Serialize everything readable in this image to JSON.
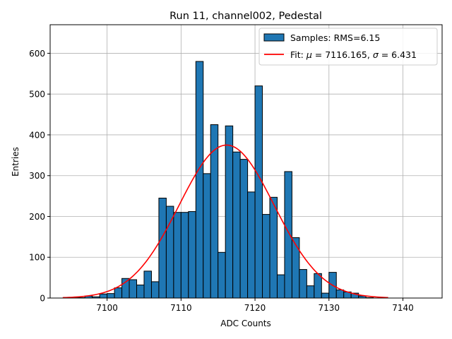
{
  "chart_data": {
    "type": "bar",
    "title": "Run 11, channel002, Pedestal",
    "xlabel": "ADC Counts",
    "ylabel": "Entries",
    "xlim": [
      7092.3,
      7145.3
    ],
    "ylim": [
      0,
      670
    ],
    "x_ticks": [
      7100,
      7110,
      7120,
      7130,
      7140
    ],
    "y_ticks": [
      0,
      100,
      200,
      300,
      400,
      500,
      600
    ],
    "grid": true,
    "legend_position": "top-right",
    "bin_width": 1,
    "bins": {
      "x_start": [
        7095,
        7096,
        7097,
        7098,
        7099,
        7100,
        7101,
        7102,
        7103,
        7104,
        7105,
        7106,
        7107,
        7108,
        7109,
        7110,
        7111,
        7112,
        7113,
        7114,
        7115,
        7116,
        7117,
        7118,
        7119,
        7120,
        7121,
        7122,
        7123,
        7124,
        7125,
        7126,
        7127,
        7128,
        7129,
        7130,
        7131,
        7132,
        7133,
        7134,
        7135
      ],
      "counts": [
        1,
        1,
        5,
        3,
        10,
        11,
        25,
        48,
        45,
        32,
        66,
        40,
        245,
        225,
        210,
        210,
        212,
        580,
        305,
        425,
        112,
        422,
        358,
        340,
        260,
        520,
        205,
        247,
        57,
        310,
        148,
        70,
        30,
        60,
        12,
        63,
        20,
        15,
        12,
        5,
        1
      ]
    },
    "series": [
      {
        "name": "Samples: RMS=6.15",
        "kind": "histogram",
        "color": "#1f77b4",
        "edgecolor": "#000000"
      },
      {
        "name": "Fit: μ = 7116.165, σ = 6.431",
        "kind": "gaussian",
        "color": "#ff0000",
        "mu": 7116.165,
        "sigma": 6.431,
        "peak": 375,
        "x_range": [
          7094,
          7138
        ]
      }
    ]
  }
}
